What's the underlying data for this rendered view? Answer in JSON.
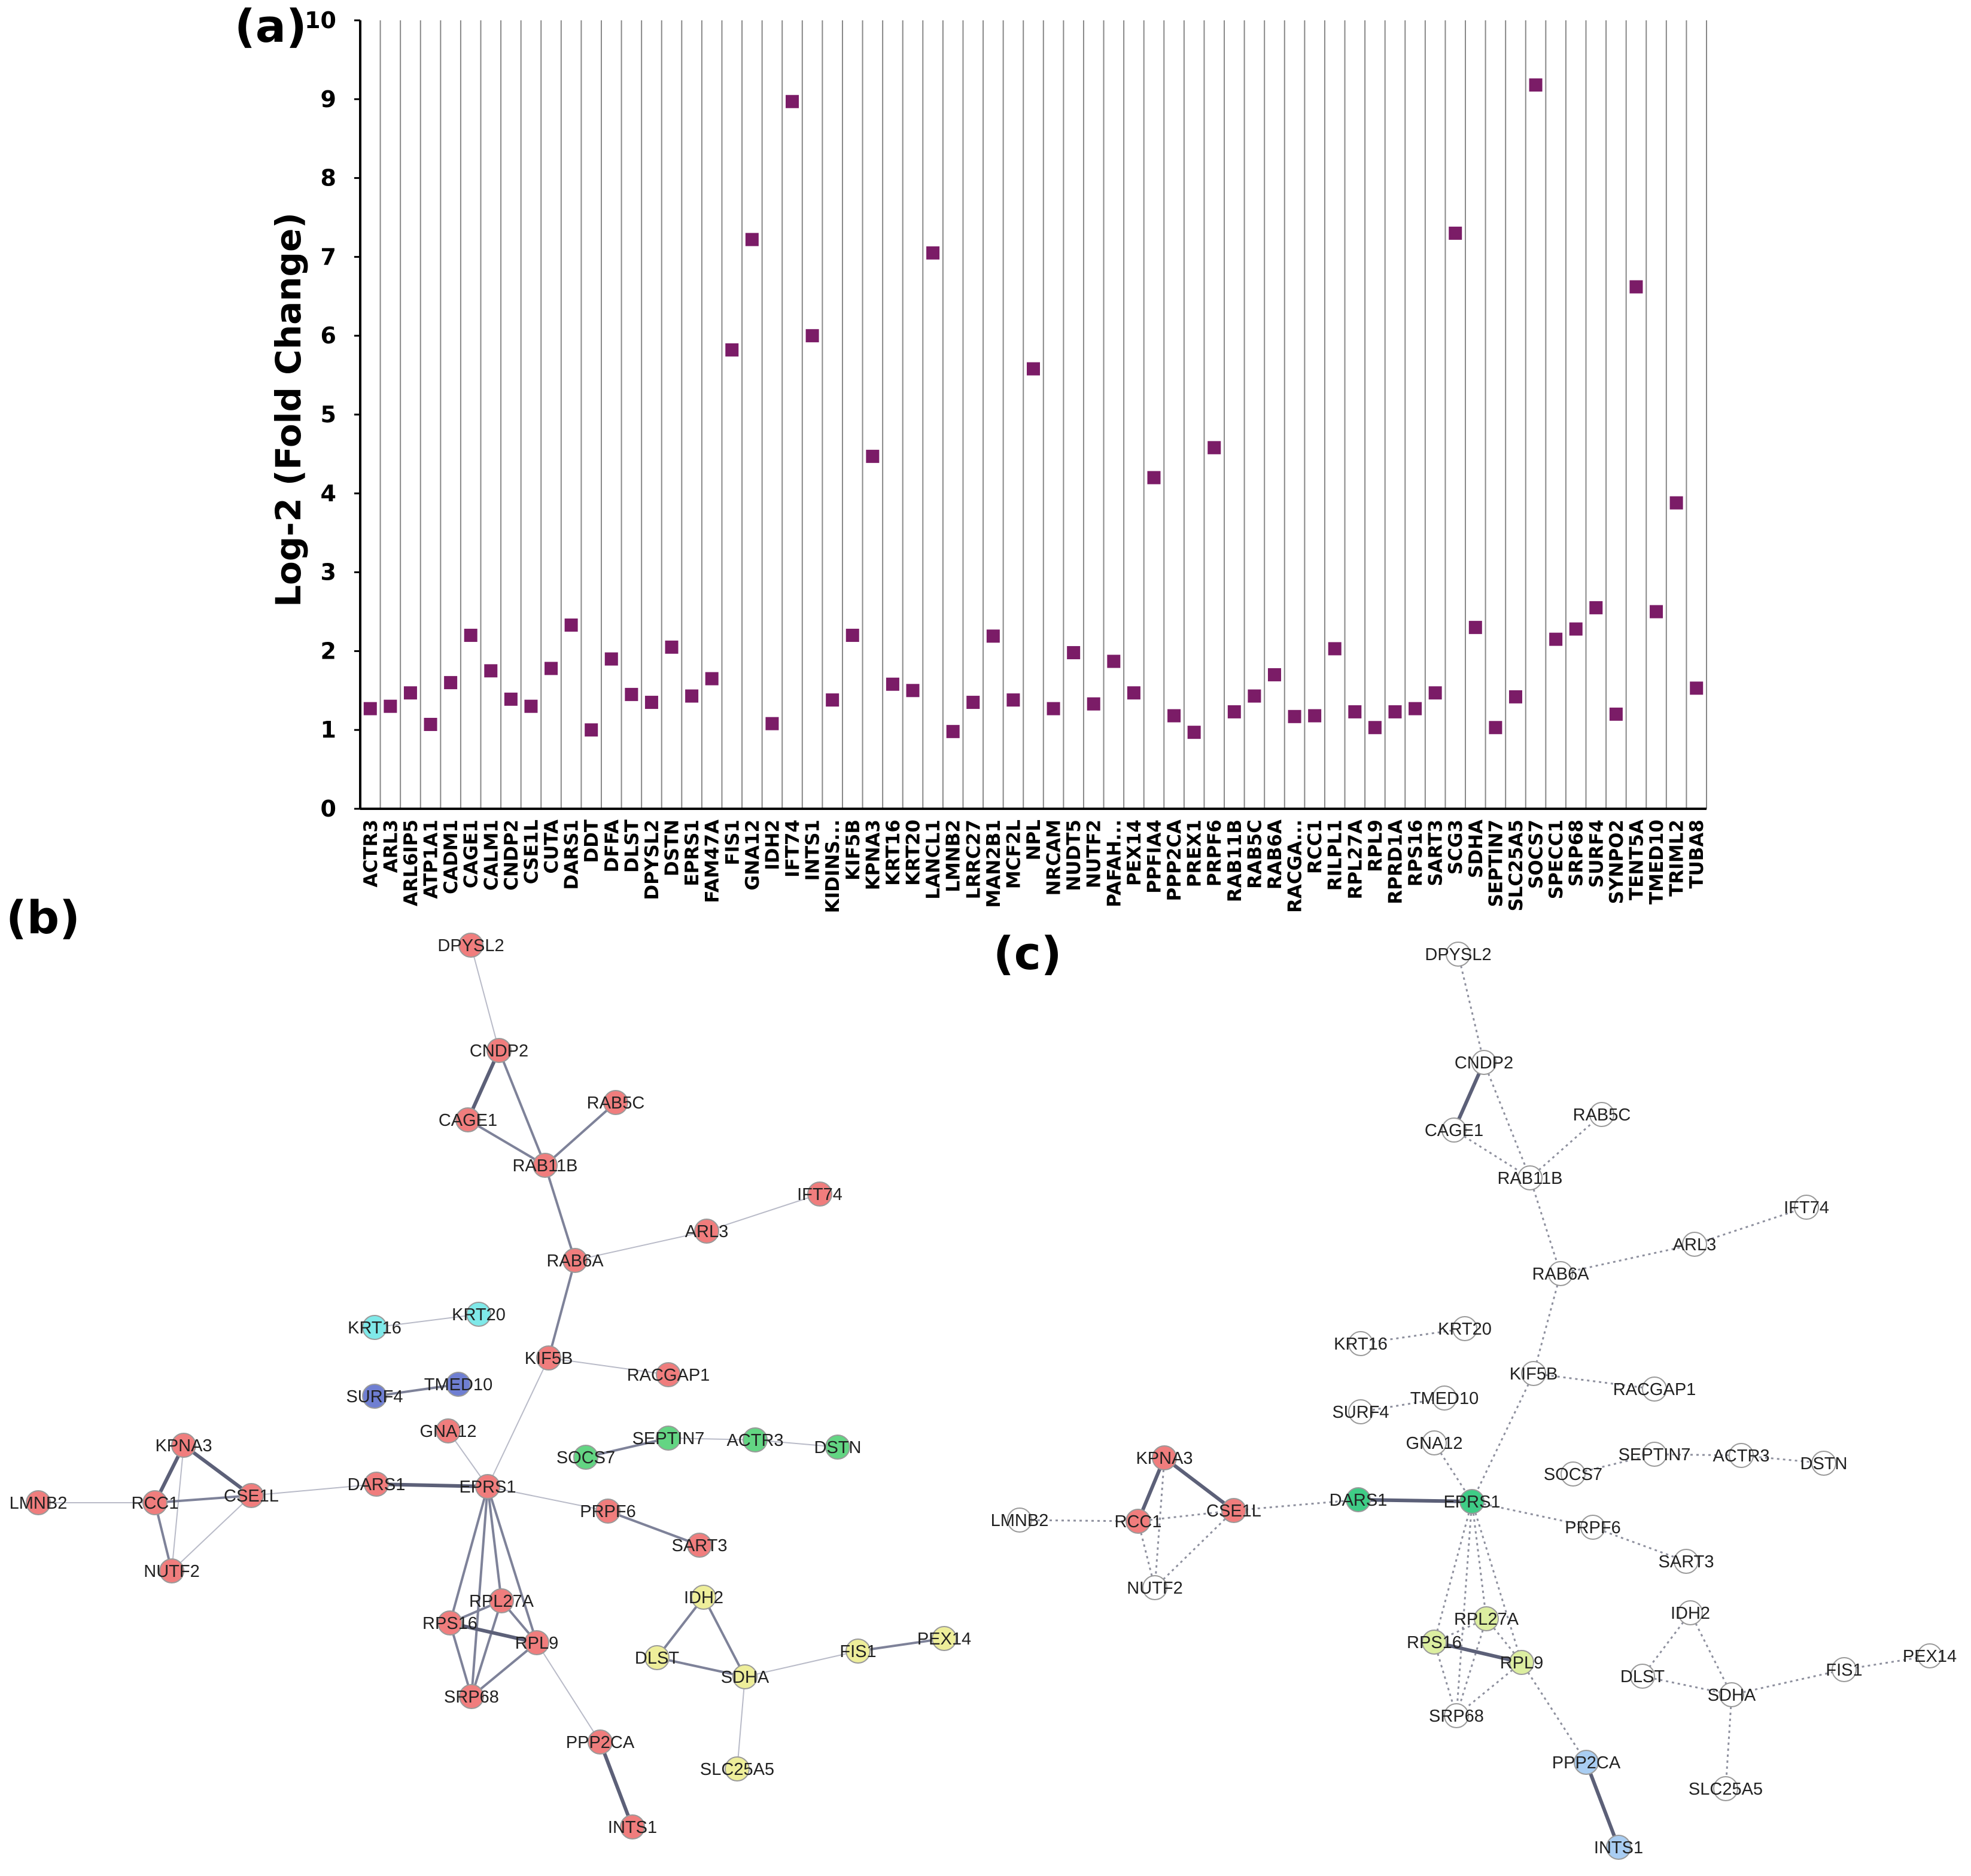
{
  "panels": {
    "a": "(a)",
    "b": "(b)",
    "c": "(c)"
  },
  "colors": {
    "marker": "#7b1c67",
    "axis": "#000000",
    "gridline": "#888888",
    "red": "#f07d7d",
    "cyan": "#7fe9e9",
    "purple": "#6f7fd2",
    "green": "#63d583",
    "yellow": "#eeee9a",
    "teal_green": "#3fcc86",
    "lime": "#dceea0",
    "light_blue": "#a9cdf2",
    "white": "#ffffff",
    "edge": "#6b6f89"
  },
  "chart_data": {
    "type": "scatter",
    "xlabel": "",
    "ylabel": "Log-2 (Fold Change)",
    "ylim": [
      0,
      10
    ],
    "yticks": [
      0,
      1,
      2,
      3,
      4,
      5,
      6,
      7,
      8,
      9,
      10
    ],
    "grid": "vertical lines",
    "categories": [
      "ACTR3",
      "ARL3",
      "ARL6IP5",
      "ATP1A1",
      "CADM1",
      "CAGE1",
      "CALM1",
      "CNDP2",
      "CSE1L",
      "CUTA",
      "DARS1",
      "DDT",
      "DFFA",
      "DLST",
      "DPYSL2",
      "DSTN",
      "EPRS1",
      "FAM47A",
      "FIS1",
      "GNA12",
      "IDH2",
      "IFT74",
      "INTS1",
      "KIDINS...",
      "KIF5B",
      "KPNA3",
      "KRT16",
      "KRT20",
      "LANCL1",
      "LMNB2",
      "LRRC27",
      "MAN2B1",
      "MCF2L",
      "NPL",
      "NRCAM",
      "NUDT5",
      "NUTF2",
      "PAFAH...",
      "PEX14",
      "PPFIA4",
      "PPP2CA",
      "PREX1",
      "PRPF6",
      "RAB11B",
      "RAB5C",
      "RAB6A",
      "RACGA...",
      "RCC1",
      "RILPL1",
      "RPL27A",
      "RPL9",
      "RPRD1A",
      "RPS16",
      "SART3",
      "SCG3",
      "SDHA",
      "SEPTIN7",
      "SLC25A5",
      "SOCS7",
      "SPECC1",
      "SRP68",
      "SURF4",
      "SYNPO2",
      "TENT5A",
      "TMED10",
      "TRIML2",
      "TUBA8"
    ],
    "values": [
      1.27,
      1.3,
      1.47,
      1.07,
      1.6,
      2.2,
      1.75,
      1.39,
      1.3,
      1.78,
      2.33,
      1.0,
      1.9,
      1.45,
      1.35,
      2.05,
      1.43,
      1.65,
      5.82,
      7.22,
      1.08,
      8.97,
      6.0,
      1.38,
      2.2,
      4.47,
      1.58,
      1.5,
      7.05,
      0.98,
      1.35,
      2.19,
      1.38,
      5.58,
      1.27,
      1.98,
      1.33,
      1.87,
      1.47,
      4.2,
      1.18,
      0.97,
      4.58,
      1.23,
      1.43,
      1.7,
      1.17,
      1.18,
      2.03,
      1.23,
      1.03,
      1.23,
      1.27,
      1.47,
      7.3,
      2.3,
      1.03,
      1.42,
      9.18,
      2.15,
      2.28,
      2.55,
      1.2,
      6.62,
      2.5,
      3.88,
      1.53
    ]
  },
  "network_b": {
    "nodes": [
      {
        "id": "DPYSL2",
        "color": "red"
      },
      {
        "id": "CNDP2",
        "color": "red"
      },
      {
        "id": "CAGE1",
        "color": "red"
      },
      {
        "id": "RAB5C",
        "color": "red"
      },
      {
        "id": "RAB11B",
        "color": "red"
      },
      {
        "id": "IFT74",
        "color": "red"
      },
      {
        "id": "ARL3",
        "color": "red"
      },
      {
        "id": "RAB6A",
        "color": "red"
      },
      {
        "id": "KRT16",
        "color": "cyan"
      },
      {
        "id": "KRT20",
        "color": "cyan"
      },
      {
        "id": "KIF5B",
        "color": "red"
      },
      {
        "id": "SURF4",
        "color": "purple"
      },
      {
        "id": "TMED10",
        "color": "purple"
      },
      {
        "id": "RACGAP1",
        "color": "red"
      },
      {
        "id": "GNA12",
        "color": "red"
      },
      {
        "id": "KPNA3",
        "color": "red"
      },
      {
        "id": "SEPTIN7",
        "color": "green"
      },
      {
        "id": "ACTR3",
        "color": "green"
      },
      {
        "id": "DSTN",
        "color": "green"
      },
      {
        "id": "SOCS7",
        "color": "green"
      },
      {
        "id": "LMNB2",
        "color": "red"
      },
      {
        "id": "RCC1",
        "color": "red"
      },
      {
        "id": "CSE1L",
        "color": "red"
      },
      {
        "id": "DARS1",
        "color": "red"
      },
      {
        "id": "EPRS1",
        "color": "red"
      },
      {
        "id": "PRPF6",
        "color": "red"
      },
      {
        "id": "NUTF2",
        "color": "red"
      },
      {
        "id": "SART3",
        "color": "red"
      },
      {
        "id": "RPL27A",
        "color": "red"
      },
      {
        "id": "RPS16",
        "color": "red"
      },
      {
        "id": "RPL9",
        "color": "red"
      },
      {
        "id": "IDH2",
        "color": "yellow"
      },
      {
        "id": "DLST",
        "color": "yellow"
      },
      {
        "id": "SDHA",
        "color": "yellow"
      },
      {
        "id": "FIS1",
        "color": "yellow"
      },
      {
        "id": "PEX14",
        "color": "yellow"
      },
      {
        "id": "SRP68",
        "color": "red"
      },
      {
        "id": "PPP2CA",
        "color": "red"
      },
      {
        "id": "SLC25A5",
        "color": "yellow"
      },
      {
        "id": "INTS1",
        "color": "red"
      }
    ]
  },
  "network_c": {
    "nodes": [
      {
        "id": "DPYSL2",
        "color": "white"
      },
      {
        "id": "CNDP2",
        "color": "white"
      },
      {
        "id": "CAGE1",
        "color": "white"
      },
      {
        "id": "RAB5C",
        "color": "white"
      },
      {
        "id": "RAB11B",
        "color": "white"
      },
      {
        "id": "IFT74",
        "color": "white"
      },
      {
        "id": "ARL3",
        "color": "white"
      },
      {
        "id": "RAB6A",
        "color": "white"
      },
      {
        "id": "KRT16",
        "color": "white"
      },
      {
        "id": "KRT20",
        "color": "white"
      },
      {
        "id": "KIF5B",
        "color": "white"
      },
      {
        "id": "SURF4",
        "color": "white"
      },
      {
        "id": "TMED10",
        "color": "white"
      },
      {
        "id": "RACGAP1",
        "color": "white"
      },
      {
        "id": "GNA12",
        "color": "white"
      },
      {
        "id": "KPNA3",
        "color": "red"
      },
      {
        "id": "SEPTIN7",
        "color": "white"
      },
      {
        "id": "ACTR3",
        "color": "white"
      },
      {
        "id": "DSTN",
        "color": "white"
      },
      {
        "id": "SOCS7",
        "color": "white"
      },
      {
        "id": "LMNB2",
        "color": "white"
      },
      {
        "id": "RCC1",
        "color": "red"
      },
      {
        "id": "CSE1L",
        "color": "red"
      },
      {
        "id": "DARS1",
        "color": "teal_green"
      },
      {
        "id": "EPRS1",
        "color": "teal_green"
      },
      {
        "id": "PRPF6",
        "color": "white"
      },
      {
        "id": "NUTF2",
        "color": "white"
      },
      {
        "id": "SART3",
        "color": "white"
      },
      {
        "id": "RPL27A",
        "color": "lime"
      },
      {
        "id": "RPS16",
        "color": "lime"
      },
      {
        "id": "RPL9",
        "color": "lime"
      },
      {
        "id": "IDH2",
        "color": "white"
      },
      {
        "id": "DLST",
        "color": "white"
      },
      {
        "id": "SDHA",
        "color": "white"
      },
      {
        "id": "FIS1",
        "color": "white"
      },
      {
        "id": "PEX14",
        "color": "white"
      },
      {
        "id": "SRP68",
        "color": "white"
      },
      {
        "id": "PPP2CA",
        "color": "light_blue"
      },
      {
        "id": "SLC25A5",
        "color": "white"
      },
      {
        "id": "INTS1",
        "color": "light_blue"
      }
    ]
  },
  "edges_b": [
    [
      "DPYSL2",
      "CNDP2",
      "thin"
    ],
    [
      "CNDP2",
      "CAGE1",
      "thick"
    ],
    [
      "CNDP2",
      "RAB11B",
      "med"
    ],
    [
      "CAGE1",
      "RAB11B",
      "med"
    ],
    [
      "RAB11B",
      "RAB5C",
      "med"
    ],
    [
      "RAB11B",
      "RAB6A",
      "med"
    ],
    [
      "RAB6A",
      "ARL3",
      "thin"
    ],
    [
      "ARL3",
      "IFT74",
      "thin"
    ],
    [
      "RAB6A",
      "KIF5B",
      "med"
    ],
    [
      "KIF5B",
      "RACGAP1",
      "thin"
    ],
    [
      "KIF5B",
      "EPRS1",
      "thin"
    ],
    [
      "KRT16",
      "KRT20",
      "thin"
    ],
    [
      "SURF4",
      "TMED10",
      "med"
    ],
    [
      "GNA12",
      "EPRS1",
      "thin"
    ],
    [
      "SOCS7",
      "SEPTIN7",
      "med"
    ],
    [
      "SEPTIN7",
      "ACTR3",
      "thin"
    ],
    [
      "ACTR3",
      "DSTN",
      "thin"
    ],
    [
      "LMNB2",
      "RCC1",
      "thin"
    ],
    [
      "KPNA3",
      "RCC1",
      "thick"
    ],
    [
      "KPNA3",
      "CSE1L",
      "thick"
    ],
    [
      "KPNA3",
      "NUTF2",
      "thin"
    ],
    [
      "RCC1",
      "NUTF2",
      "med"
    ],
    [
      "RCC1",
      "CSE1L",
      "med"
    ],
    [
      "NUTF2",
      "CSE1L",
      "thin"
    ],
    [
      "CSE1L",
      "DARS1",
      "thin"
    ],
    [
      "DARS1",
      "EPRS1",
      "thick"
    ],
    [
      "EPRS1",
      "PRPF6",
      "thin"
    ],
    [
      "PRPF6",
      "SART3",
      "med"
    ],
    [
      "EPRS1",
      "RPL27A",
      "med"
    ],
    [
      "EPRS1",
      "RPS16",
      "med"
    ],
    [
      "EPRS1",
      "RPL9",
      "med"
    ],
    [
      "EPRS1",
      "SRP68",
      "med"
    ],
    [
      "RPL27A",
      "RPS16",
      "med"
    ],
    [
      "RPL27A",
      "RPL9",
      "med"
    ],
    [
      "RPL27A",
      "SRP68",
      "med"
    ],
    [
      "RPS16",
      "RPL9",
      "thick"
    ],
    [
      "RPS16",
      "SRP68",
      "med"
    ],
    [
      "RPL9",
      "SRP68",
      "med"
    ],
    [
      "RPL9",
      "PPP2CA",
      "thin"
    ],
    [
      "PPP2CA",
      "INTS1",
      "thick"
    ],
    [
      "IDH2",
      "DLST",
      "med"
    ],
    [
      "IDH2",
      "SDHA",
      "med"
    ],
    [
      "DLST",
      "SDHA",
      "med"
    ],
    [
      "SDHA",
      "FIS1",
      "thin"
    ],
    [
      "FIS1",
      "PEX14",
      "med"
    ],
    [
      "SDHA",
      "SLC25A5",
      "thin"
    ]
  ]
}
